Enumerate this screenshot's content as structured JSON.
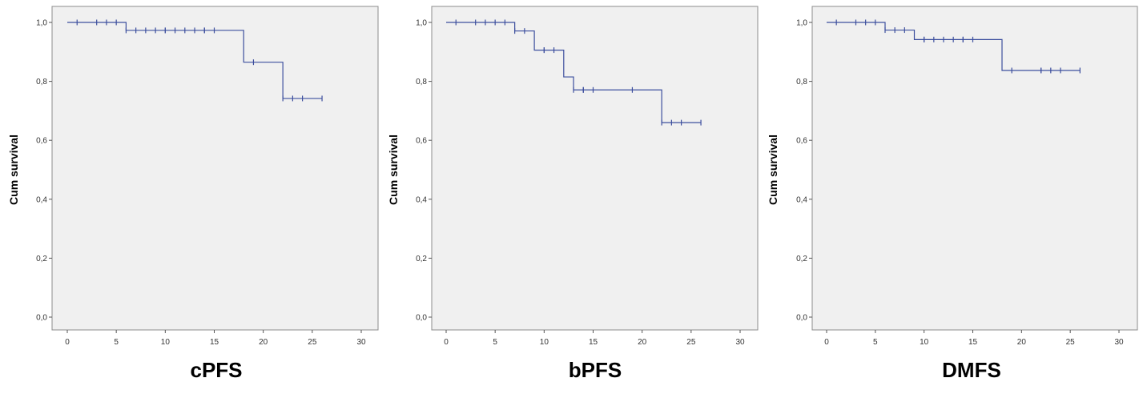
{
  "chart_data": [
    {
      "type": "line",
      "title": "cPFS",
      "ylabel": "Cum survival",
      "xlabel": "",
      "xlim": [
        0,
        30
      ],
      "ylim": [
        0,
        1
      ],
      "x_ticks": [
        "0",
        "5",
        "10",
        "15",
        "20",
        "25",
        "30"
      ],
      "y_ticks": [
        "0,0",
        "0,2",
        "0,4",
        "0,6",
        "0,8",
        "1,0"
      ],
      "grid": false,
      "step_curve": {
        "x": [
          0,
          6,
          18,
          22,
          26
        ],
        "y": [
          1.0,
          0.973,
          0.865,
          0.742,
          0.742
        ]
      },
      "censored": {
        "x": [
          1,
          3,
          4,
          5,
          6,
          7,
          8,
          9,
          10,
          10,
          11,
          12,
          13,
          14,
          14,
          15,
          19,
          22,
          23,
          24,
          26
        ],
        "y": [
          1.0,
          1.0,
          1.0,
          1.0,
          0.973,
          0.973,
          0.973,
          0.973,
          0.973,
          0.973,
          0.973,
          0.973,
          0.973,
          0.973,
          0.973,
          0.973,
          0.865,
          0.742,
          0.742,
          0.742,
          0.742
        ]
      }
    },
    {
      "type": "line",
      "title": "bPFS",
      "ylabel": "Cum survival",
      "xlabel": "",
      "xlim": [
        0,
        30
      ],
      "ylim": [
        0,
        1
      ],
      "x_ticks": [
        "0",
        "5",
        "10",
        "15",
        "20",
        "25",
        "30"
      ],
      "y_ticks": [
        "0,0",
        "0,2",
        "0,4",
        "0,6",
        "0,8",
        "1,0"
      ],
      "grid": false,
      "step_curve": {
        "x": [
          0,
          7,
          9,
          12,
          13,
          22,
          26
        ],
        "y": [
          1.0,
          0.971,
          0.906,
          0.815,
          0.771,
          0.66,
          0.66
        ]
      },
      "censored": {
        "x": [
          1,
          3,
          4,
          5,
          6,
          7,
          8,
          10,
          10,
          11,
          13,
          14,
          14,
          15,
          19,
          22,
          23,
          24,
          26
        ],
        "y": [
          1.0,
          1.0,
          1.0,
          1.0,
          1.0,
          0.971,
          0.971,
          0.906,
          0.906,
          0.906,
          0.771,
          0.771,
          0.771,
          0.771,
          0.771,
          0.66,
          0.66,
          0.66,
          0.66
        ]
      }
    },
    {
      "type": "line",
      "title": "DMFS",
      "ylabel": "Cum survival",
      "xlabel": "",
      "xlim": [
        0,
        30
      ],
      "ylim": [
        0,
        1
      ],
      "x_ticks": [
        "0",
        "5",
        "10",
        "15",
        "20",
        "25",
        "30"
      ],
      "y_ticks": [
        "0,0",
        "0,2",
        "0,4",
        "0,6",
        "0,8",
        "1,0"
      ],
      "grid": false,
      "step_curve": {
        "x": [
          0,
          6,
          9,
          18,
          26
        ],
        "y": [
          1.0,
          0.974,
          0.942,
          0.837,
          0.837
        ]
      },
      "censored": {
        "x": [
          1,
          3,
          4,
          5,
          6,
          7,
          8,
          10,
          10,
          11,
          12,
          13,
          14,
          14,
          15,
          19,
          22,
          22,
          23,
          24,
          26
        ],
        "y": [
          1.0,
          1.0,
          1.0,
          1.0,
          0.974,
          0.974,
          0.974,
          0.942,
          0.942,
          0.942,
          0.942,
          0.942,
          0.942,
          0.942,
          0.942,
          0.837,
          0.837,
          0.837,
          0.837,
          0.837,
          0.837
        ]
      }
    }
  ],
  "colors": {
    "curve": "#3d4f9e",
    "plot_background": "#f0f0f0",
    "frame": "#8c8c8c"
  }
}
